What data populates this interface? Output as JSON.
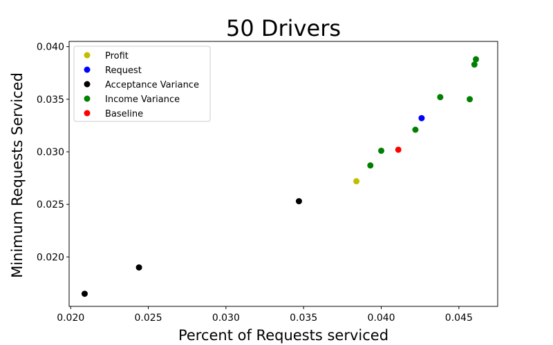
{
  "chart_data": {
    "type": "scatter",
    "title": "50 Drivers",
    "xlabel": "Percent of Requests serviced",
    "ylabel": "Minimum Requests Serviced",
    "xlim": [
      0.0199,
      0.0475
    ],
    "ylim": [
      0.0153,
      0.0405
    ],
    "xticks": [
      0.02,
      0.025,
      0.03,
      0.035,
      0.04,
      0.045
    ],
    "xtick_labels": [
      "0.020",
      "0.025",
      "0.030",
      "0.035",
      "0.040",
      "0.045"
    ],
    "yticks": [
      0.02,
      0.025,
      0.03,
      0.035,
      0.04
    ],
    "ytick_labels": [
      "0.020",
      "0.025",
      "0.030",
      "0.035",
      "0.040"
    ],
    "grid": false,
    "legend_position": "top-left",
    "series": [
      {
        "name": "Profit",
        "color": "#bfbf00",
        "points": [
          [
            0.0384,
            0.0272
          ]
        ]
      },
      {
        "name": "Request",
        "color": "#0000ff",
        "points": [
          [
            0.0426,
            0.0332
          ]
        ]
      },
      {
        "name": "Acceptance Variance",
        "color": "#000000",
        "points": [
          [
            0.0209,
            0.0165
          ],
          [
            0.0244,
            0.019
          ],
          [
            0.0347,
            0.0253
          ]
        ]
      },
      {
        "name": "Income Variance",
        "color": "#008000",
        "points": [
          [
            0.0393,
            0.0287
          ],
          [
            0.04,
            0.0301
          ],
          [
            0.0422,
            0.0321
          ],
          [
            0.0438,
            0.0352
          ],
          [
            0.0457,
            0.035
          ],
          [
            0.046,
            0.0383
          ],
          [
            0.0461,
            0.0388
          ]
        ]
      },
      {
        "name": "Baseline",
        "color": "#ff0000",
        "points": [
          [
            0.0411,
            0.0302
          ]
        ]
      }
    ]
  }
}
